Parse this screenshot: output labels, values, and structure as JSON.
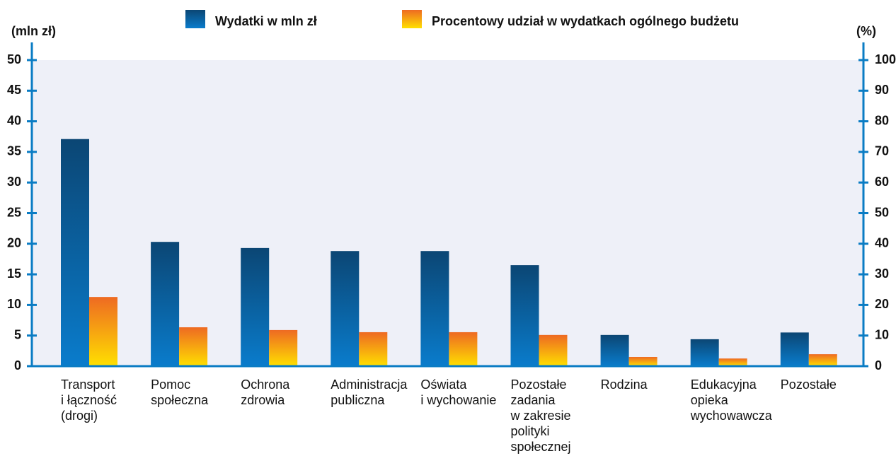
{
  "chart_data": {
    "type": "bar",
    "ylabel": "(mln zł)",
    "y2label": "(%)",
    "categories": [
      [
        "Transport",
        "i łączność",
        "(drogi)"
      ],
      [
        "Pomoc",
        "społeczna"
      ],
      [
        "Ochrona",
        "zdrowia"
      ],
      [
        "Administracja",
        "publiczna"
      ],
      [
        "Oświata",
        "i wychowanie"
      ],
      [
        "Pozostałe",
        "zadania",
        "w zakresie",
        "polityki",
        "społecznej"
      ],
      [
        "Rodzina"
      ],
      [
        "Edukacyjna",
        "opieka",
        "wychowawcza"
      ],
      [
        "Pozostałe"
      ]
    ],
    "series": [
      {
        "name": "Wydatki w mln zł",
        "colors": [
          "#0b4674",
          "#0a7ccc"
        ],
        "values": [
          37.1,
          20.3,
          19.3,
          18.8,
          18.8,
          16.5,
          5.1,
          4.4,
          5.5
        ]
      },
      {
        "name": "Procentowy udział w wydatkach ogólnego budżetu",
        "axis": "y2",
        "colors": [
          "#ee6a22",
          "#ffe000"
        ],
        "values": [
          22.6,
          12.7,
          11.8,
          11.1,
          11.1,
          10.2,
          3.0,
          2.5,
          3.9
        ]
      }
    ],
    "ylim": [
      0,
      50
    ],
    "yticks": [
      0,
      5,
      10,
      15,
      20,
      25,
      30,
      35,
      40,
      45,
      50
    ],
    "y2lim": [
      0,
      100
    ],
    "y2ticks": [
      0,
      10,
      20,
      30,
      40,
      50,
      60,
      70,
      80,
      90,
      100
    ],
    "axis_color": "#0a7cc4",
    "plot_background": "#eef0f8"
  }
}
